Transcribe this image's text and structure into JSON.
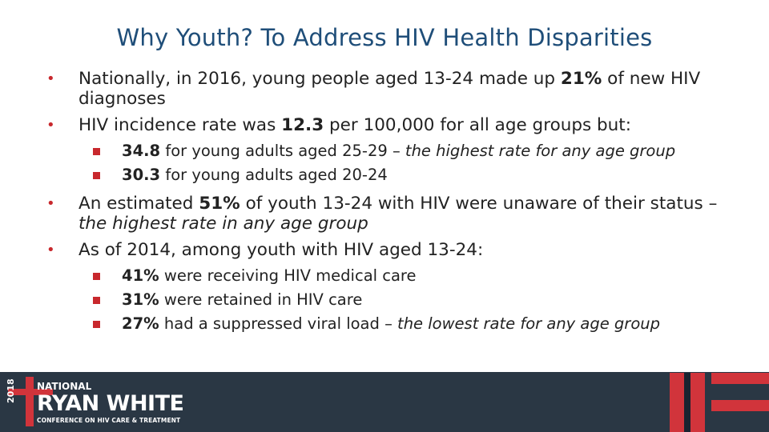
{
  "slide": {
    "title": "Why Youth? To Address HIV Health Disparities",
    "bullets": [
      {
        "parts": [
          {
            "text": "Nationally, in 2016, young people aged 13-24 made up ",
            "style": "normal"
          },
          {
            "text": "21%",
            "style": "bold"
          },
          {
            "text": " of new HIV diagnoses",
            "style": "normal"
          }
        ],
        "sub": []
      },
      {
        "parts": [
          {
            "text": "HIV incidence rate was ",
            "style": "normal"
          },
          {
            "text": "12.3",
            "style": "bold"
          },
          {
            "text": " per 100,000 for all age groups but:",
            "style": "normal"
          }
        ],
        "sub": [
          [
            {
              "text": "34.8",
              "style": "bold"
            },
            {
              "text": " for young adults aged 25-29 – ",
              "style": "normal"
            },
            {
              "text": "the highest rate for any age group",
              "style": "italic"
            }
          ],
          [
            {
              "text": "30.3",
              "style": "bold"
            },
            {
              "text": " for young adults aged 20-24",
              "style": "normal"
            }
          ]
        ]
      },
      {
        "parts": [
          {
            "text": "An estimated ",
            "style": "normal"
          },
          {
            "text": "51%",
            "style": "bold"
          },
          {
            "text": " of youth 13-24 with HIV were unaware of their status – ",
            "style": "normal"
          },
          {
            "text": "the highest rate in any age group",
            "style": "italic"
          }
        ],
        "sub": []
      },
      {
        "parts": [
          {
            "text": "As of 2014, among youth with HIV aged 13-24:",
            "style": "normal"
          }
        ],
        "sub": [
          [
            {
              "text": "41%",
              "style": "bold"
            },
            {
              "text": " were receiving HIV medical care",
              "style": "normal"
            }
          ],
          [
            {
              "text": "31%",
              "style": "bold"
            },
            {
              "text": " were retained in HIV care",
              "style": "normal"
            }
          ],
          [
            {
              "text": "27%",
              "style": "bold"
            },
            {
              "text": " had a suppressed viral load – ",
              "style": "normal"
            },
            {
              "text": "the lowest rate for any age group",
              "style": "italic"
            }
          ]
        ]
      }
    ]
  },
  "footer": {
    "year": "2018",
    "national": "NATIONAL",
    "name": "RYAN WHITE",
    "conference": "CONFERENCE ON HIV CARE & TREATMENT"
  },
  "colors": {
    "title": "#1f4e79",
    "accent": "#c8282d",
    "footer_bg": "#2a3744"
  }
}
